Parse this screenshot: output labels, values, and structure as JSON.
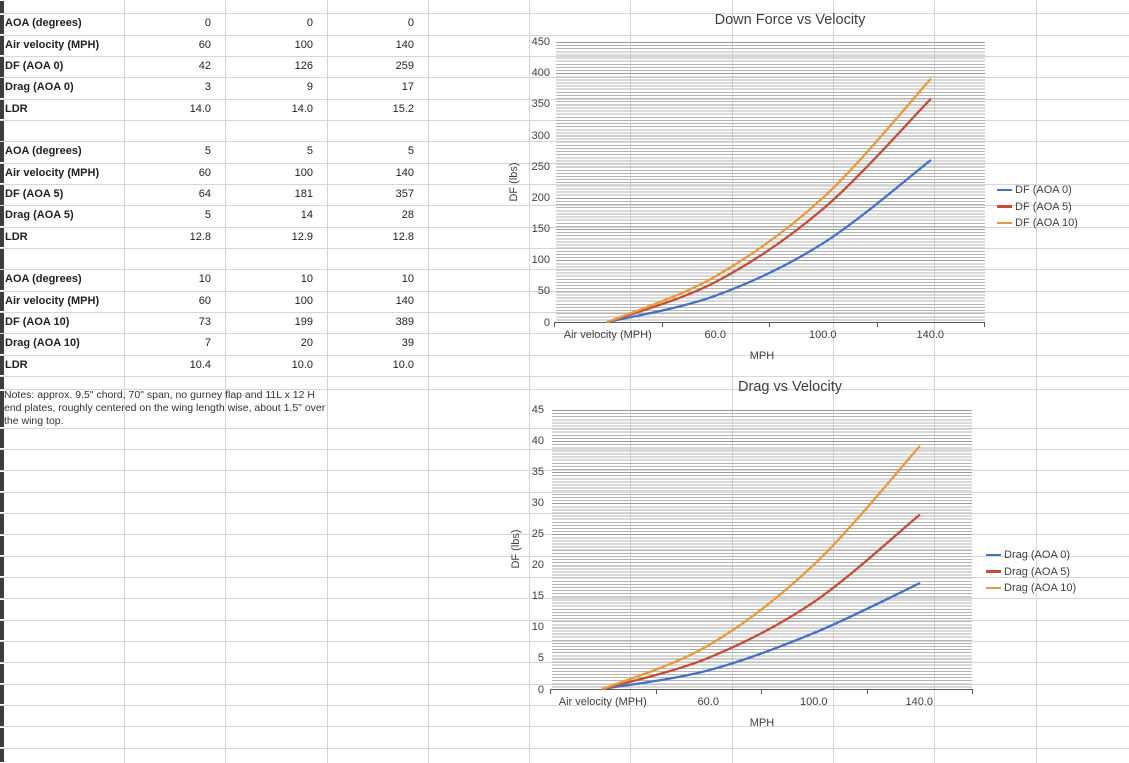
{
  "table": {
    "groups": [
      {
        "rows": [
          [
            "AOA (degrees)",
            "0",
            "0",
            "0"
          ],
          [
            "Air velocity (MPH)",
            "60",
            "100",
            "140"
          ],
          [
            "DF (AOA 0)",
            "42",
            "126",
            "259"
          ],
          [
            "Drag (AOA 0)",
            "3",
            "9",
            "17"
          ],
          [
            "LDR",
            "14.0",
            "14.0",
            "15.2"
          ]
        ]
      },
      {
        "rows": [
          [
            "AOA (degrees)",
            "5",
            "5",
            "5"
          ],
          [
            "Air velocity (MPH)",
            "60",
            "100",
            "140"
          ],
          [
            "DF (AOA 5)",
            "64",
            "181",
            "357"
          ],
          [
            "Drag (AOA 5)",
            "5",
            "14",
            "28"
          ],
          [
            "LDR",
            "12.8",
            "12.9",
            "12.8"
          ]
        ]
      },
      {
        "rows": [
          [
            "AOA (degrees)",
            "10",
            "10",
            "10"
          ],
          [
            "Air velocity (MPH)",
            "60",
            "100",
            "140"
          ],
          [
            "DF (AOA 10)",
            "73",
            "199",
            "389"
          ],
          [
            "Drag (AOA 10)",
            "7",
            "20",
            "39"
          ],
          [
            "LDR",
            "10.4",
            "10.0",
            "10.0"
          ]
        ]
      }
    ],
    "notes": "Notes: approx. 9.5\" chord, 70\" span, no gurney flap and 11L x 12 H end plates, roughly centered on the wing length wise, about 1.5\" over the wing top."
  },
  "chart_data": [
    {
      "type": "line",
      "title": "Down Force vs Velocity",
      "categories": [
        "Air velocity (MPH)",
        "60.0",
        "100.0",
        "140.0"
      ],
      "series": [
        {
          "name": "DF (AOA 0)",
          "color": "#4472C4",
          "values": [
            0,
            42,
            126,
            259
          ]
        },
        {
          "name": "DF (AOA 5)",
          "color": "#C24E38",
          "values": [
            0,
            64,
            181,
            357
          ]
        },
        {
          "name": "DF (AOA 10)",
          "color": "#E8993B",
          "values": [
            0,
            73,
            199,
            389
          ]
        }
      ],
      "xlabel": "MPH",
      "ylabel": "DF (lbs)",
      "ylim": [
        0,
        450
      ],
      "ytick_step": 50,
      "yminor_step": 5,
      "grid": "horizontal-minor",
      "legend_position": "right"
    },
    {
      "type": "line",
      "title": "Drag vs Velocity",
      "categories": [
        "Air velocity (MPH)",
        "60.0",
        "100.0",
        "140.0"
      ],
      "series": [
        {
          "name": "Drag (AOA 0)",
          "color": "#4472C4",
          "values": [
            0,
            3,
            9,
            17
          ]
        },
        {
          "name": "Drag (AOA 5)",
          "color": "#C24E38",
          "values": [
            0,
            5,
            14,
            28
          ]
        },
        {
          "name": "Drag (AOA 10)",
          "color": "#E8993B",
          "values": [
            0,
            7,
            20,
            39
          ]
        }
      ],
      "xlabel": "MPH",
      "ylabel": "DF (lbs)",
      "ylim": [
        0,
        45
      ],
      "ytick_step": 5,
      "yminor_step": 0.5,
      "grid": "horizontal-minor",
      "legend_position": "right"
    }
  ]
}
